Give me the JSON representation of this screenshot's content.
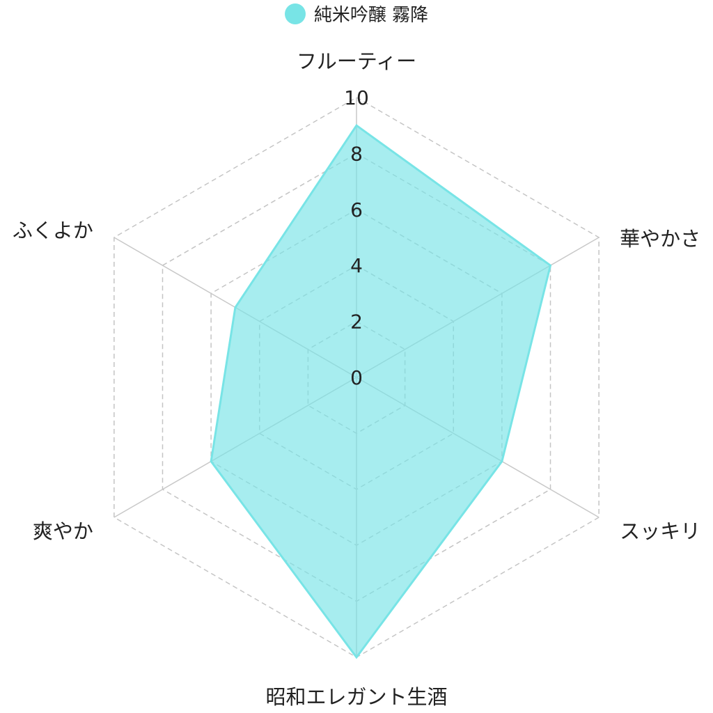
{
  "chart_data": {
    "type": "radar",
    "axes": [
      "フルーティー",
      "華やかさ",
      "スッキリ",
      "昭和エレガント生酒",
      "爽やか",
      "ふくよか"
    ],
    "series": [
      {
        "name": "純米吟醸 霧降",
        "values": [
          9,
          8,
          6,
          10,
          6,
          5
        ],
        "color": "#78e4e6"
      }
    ],
    "r_range": [
      0,
      10
    ],
    "ticks": [
      "0",
      "2",
      "4",
      "6",
      "8",
      "10"
    ],
    "gridlines": "dashed",
    "legend_position": "top-center"
  }
}
